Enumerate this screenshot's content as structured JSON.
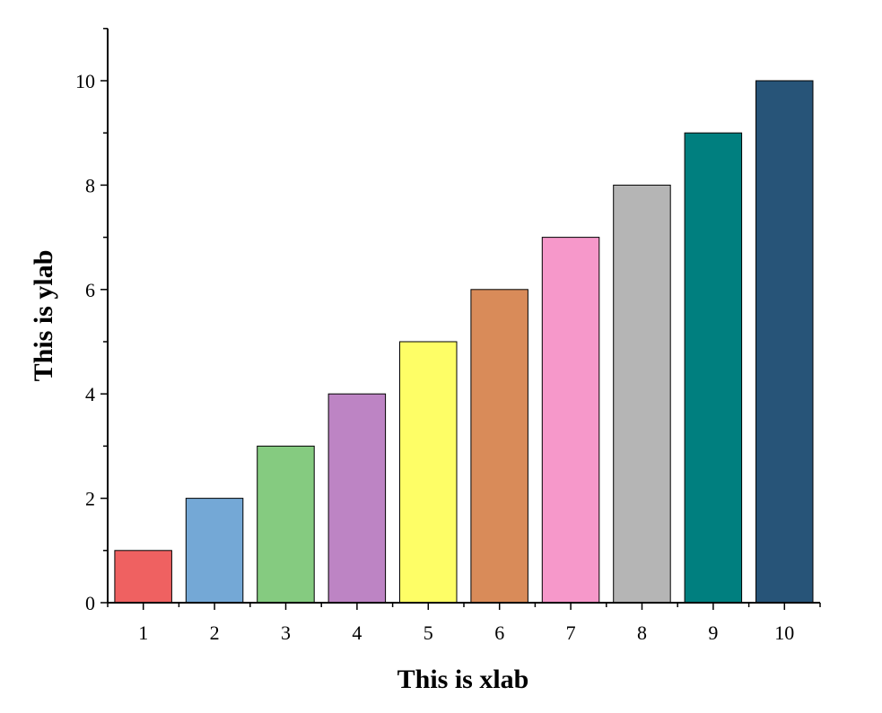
{
  "chart_data": {
    "type": "bar",
    "categories": [
      "1",
      "2",
      "3",
      "4",
      "5",
      "6",
      "7",
      "8",
      "9",
      "10"
    ],
    "values": [
      1,
      2,
      3,
      4,
      5,
      6,
      7,
      8,
      9,
      10
    ],
    "colors": [
      "#EF6161",
      "#74A8D6",
      "#85CB80",
      "#BD84C4",
      "#FEFE66",
      "#D98B59",
      "#F698CA",
      "#B5B5B5",
      "#007F7F",
      "#275478"
    ],
    "title": "",
    "xlabel": "This is xlab",
    "ylabel": "This is ylab",
    "ylim": [
      0,
      11
    ],
    "yticks": [
      0,
      2,
      4,
      6,
      8,
      10
    ],
    "grid": false,
    "legend": "none"
  }
}
